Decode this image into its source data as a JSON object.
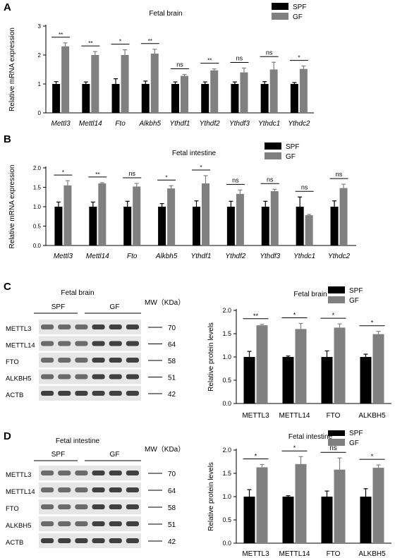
{
  "panels": [
    {
      "letter": "A"
    },
    {
      "letter": "B"
    },
    {
      "letter": "C"
    },
    {
      "letter": "D"
    }
  ],
  "colors": {
    "spf": "#000000",
    "gf": "#808080"
  },
  "chart_data": [
    {
      "id": "A",
      "type": "bar",
      "title": "Fetal brain",
      "ylabel": "Relative mRNA expression",
      "xlabel": "",
      "categories": [
        "Mettl3",
        "Mettl14",
        "Fto",
        "Alkbh5",
        "Ythdf1",
        "Ythdf2",
        "Ythdf3",
        "Ythdc1",
        "Ythdc2"
      ],
      "cat_italic": true,
      "ylim": [
        0,
        3
      ],
      "yticks": [
        "0",
        "1",
        "2",
        "3"
      ],
      "ytick_values": [
        0,
        1,
        2,
        3
      ],
      "legend": [
        "SPF",
        "GF"
      ],
      "legend_position": "top-right",
      "series": [
        {
          "name": "SPF",
          "values": [
            1.0,
            1.0,
            1.0,
            1.0,
            1.0,
            1.0,
            1.0,
            1.0,
            1.0
          ],
          "errors": [
            0.08,
            0.07,
            0.18,
            0.1,
            0.07,
            0.07,
            0.07,
            0.08,
            0.05
          ]
        },
        {
          "name": "GF",
          "values": [
            2.3,
            2.0,
            2.0,
            2.05,
            1.28,
            1.47,
            1.4,
            1.5,
            1.52
          ],
          "errors": [
            0.12,
            0.12,
            0.18,
            0.15,
            0.05,
            0.05,
            0.15,
            0.25,
            0.1
          ]
        }
      ],
      "significance": [
        "**",
        "**",
        "*",
        "**",
        "ns",
        "**",
        "ns",
        "ns",
        "*"
      ]
    },
    {
      "id": "B",
      "type": "bar",
      "title": "Fetal intestine",
      "ylabel": "Relative mRNA expression",
      "xlabel": "",
      "categories": [
        "Mettl3",
        "Mettl14",
        "Fto",
        "Alkbh5",
        "Ythdf1",
        "Ythdf2",
        "Ythdf3",
        "Ythdc1",
        "Ythdc2"
      ],
      "cat_italic": true,
      "ylim": [
        0,
        2.0
      ],
      "yticks": [
        "0.0",
        "0.5",
        "1.0",
        "1.5",
        "2.0"
      ],
      "ytick_values": [
        0,
        0.5,
        1.0,
        1.5,
        2.0
      ],
      "legend": [
        "SPF",
        "GF"
      ],
      "legend_position": "top-right",
      "series": [
        {
          "name": "SPF",
          "values": [
            1.0,
            1.0,
            1.0,
            1.0,
            1.0,
            1.0,
            1.0,
            1.0,
            1.0
          ],
          "errors": [
            0.12,
            0.12,
            0.14,
            0.08,
            0.15,
            0.14,
            0.14,
            0.25,
            0.15
          ]
        },
        {
          "name": "GF",
          "values": [
            1.55,
            1.6,
            1.52,
            1.47,
            1.6,
            1.33,
            1.4,
            0.78,
            1.48
          ],
          " errors": [],
          "errors": [
            0.12,
            0.02,
            0.08,
            0.07,
            0.2,
            0.1,
            0.05,
            0.02,
            0.1
          ]
        }
      ],
      "significance": [
        "*",
        "**",
        "ns",
        "*",
        "*",
        "ns",
        "ns",
        "ns",
        "ns"
      ]
    },
    {
      "id": "C",
      "type": "bar",
      "title": "Fetal brain",
      "ylabel": "Relative protein levels",
      "xlabel": "",
      "categories": [
        "METTL3",
        "METTL14",
        "FTO",
        "ALKBH5"
      ],
      "cat_italic": false,
      "ylim": [
        0,
        2.0
      ],
      "yticks": [
        "0.0",
        "0.5",
        "1.0",
        "1.5",
        "2.0"
      ],
      "ytick_values": [
        0,
        0.5,
        1.0,
        1.5,
        2.0
      ],
      "legend": [
        "SPF",
        "GF"
      ],
      "legend_position": "top-right",
      "series": [
        {
          "name": "SPF",
          "values": [
            1.0,
            1.0,
            1.0,
            1.0
          ],
          "errors": [
            0.12,
            0.02,
            0.13,
            0.06
          ]
        },
        {
          "name": "GF",
          "values": [
            1.68,
            1.6,
            1.63,
            1.49
          ],
          "errors": [
            0.02,
            0.12,
            0.08,
            0.06
          ]
        }
      ],
      "significance": [
        "**",
        "*",
        "*",
        "*"
      ]
    },
    {
      "id": "D",
      "type": "bar",
      "title": "Fetal intestine",
      "ylabel": "Relative protein levels",
      "xlabel": "",
      "categories": [
        "METTL3",
        "METTL14",
        "FTO",
        "ALKBH5"
      ],
      "cat_italic": false,
      "ylim": [
        0,
        2.0
      ],
      "yticks": [
        "0.0",
        "0.5",
        "1.0",
        "1.5",
        "2.0"
      ],
      "ytick_values": [
        0,
        0.5,
        1.0,
        1.5,
        2.0
      ],
      "legend": [
        "SPF",
        "GF"
      ],
      "legend_position": "top-right",
      "series": [
        {
          "name": "SPF",
          "values": [
            1.0,
            1.0,
            1.0,
            1.0
          ],
          "errors": [
            0.15,
            0.02,
            0.12,
            0.17
          ]
        },
        {
          "name": "GF",
          "values": [
            1.63,
            1.7,
            1.58,
            1.62
          ],
          "errors": [
            0.06,
            0.16,
            0.25,
            0.06
          ]
        }
      ],
      "significance": [
        "*",
        "*",
        "ns",
        "*"
      ]
    }
  ],
  "blots": [
    {
      "id": "C",
      "title": "Fetal brain",
      "groups": [
        "SPF",
        "GF"
      ],
      "mw_header": "MW（KDa）",
      "proteins": [
        "METTL3",
        "METTL14",
        "FTO",
        "ALKBH5",
        "ACTB"
      ],
      "mw": [
        "70",
        "64",
        "58",
        "51",
        "42"
      ]
    },
    {
      "id": "D",
      "title": "Fetal intestine",
      "groups": [
        "SPF",
        "GF"
      ],
      "mw_header": "MW（KDa）",
      "proteins": [
        "METTL3",
        "METTL14",
        "FTO",
        "ALKBH5",
        "ACTB"
      ],
      "mw": [
        "70",
        "64",
        "58",
        "51",
        "42"
      ]
    }
  ]
}
